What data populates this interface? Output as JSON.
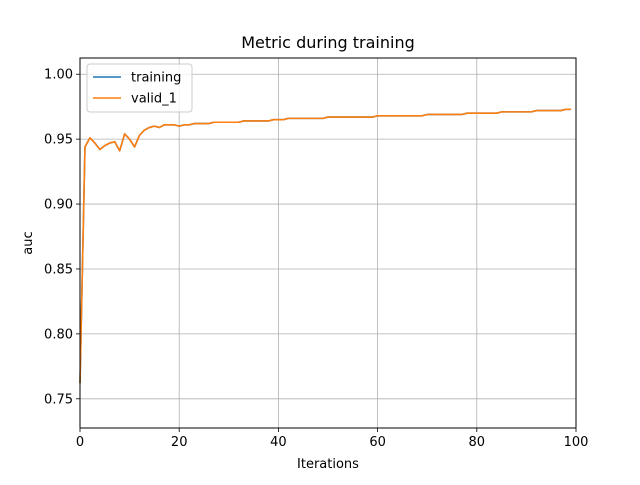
{
  "chart_data": {
    "type": "line",
    "title": "Metric during training",
    "xlabel": "Iterations",
    "ylabel": "auc",
    "xlim": [
      0,
      100
    ],
    "ylim": [
      0.7275,
      1.0125
    ],
    "grid": true,
    "legend_position": "top-left",
    "xticks": [
      "0",
      "20",
      "40",
      "60",
      "80",
      "100"
    ],
    "xtick_values": [
      0,
      20,
      40,
      60,
      80,
      100
    ],
    "yticks": [
      "0.75",
      "0.80",
      "0.85",
      "0.90",
      "0.95",
      "1.00"
    ],
    "ytick_values": [
      0.75,
      0.8,
      0.85,
      0.9,
      0.95,
      1.0
    ],
    "x": [
      0,
      1,
      2,
      3,
      4,
      5,
      6,
      7,
      8,
      9,
      10,
      11,
      12,
      13,
      14,
      15,
      16,
      17,
      18,
      19,
      20,
      21,
      22,
      23,
      24,
      25,
      26,
      27,
      28,
      29,
      30,
      31,
      32,
      33,
      34,
      35,
      36,
      37,
      38,
      39,
      40,
      41,
      42,
      43,
      44,
      45,
      46,
      47,
      48,
      49,
      50,
      51,
      52,
      53,
      54,
      55,
      56,
      57,
      58,
      59,
      60,
      61,
      62,
      63,
      64,
      65,
      66,
      67,
      68,
      69,
      70,
      71,
      72,
      73,
      74,
      75,
      76,
      77,
      78,
      79,
      80,
      81,
      82,
      83,
      84,
      85,
      86,
      87,
      88,
      89,
      90,
      91,
      92,
      93,
      94,
      95,
      96,
      97,
      98,
      99
    ],
    "series": [
      {
        "name": "training",
        "color": "#1f77b4",
        "values": [
          0.762,
          0.944,
          0.951,
          0.947,
          0.942,
          0.945,
          0.947,
          0.948,
          0.941,
          0.954,
          0.95,
          0.944,
          0.953,
          0.957,
          0.959,
          0.96,
          0.959,
          0.961,
          0.961,
          0.961,
          0.96,
          0.961,
          0.961,
          0.962,
          0.962,
          0.962,
          0.962,
          0.963,
          0.963,
          0.963,
          0.963,
          0.963,
          0.963,
          0.964,
          0.964,
          0.964,
          0.964,
          0.964,
          0.964,
          0.965,
          0.965,
          0.965,
          0.966,
          0.966,
          0.966,
          0.966,
          0.966,
          0.966,
          0.966,
          0.966,
          0.967,
          0.967,
          0.967,
          0.967,
          0.967,
          0.967,
          0.967,
          0.967,
          0.967,
          0.967,
          0.968,
          0.968,
          0.968,
          0.968,
          0.968,
          0.968,
          0.968,
          0.968,
          0.968,
          0.968,
          0.969,
          0.969,
          0.969,
          0.969,
          0.969,
          0.969,
          0.969,
          0.969,
          0.97,
          0.97,
          0.97,
          0.97,
          0.97,
          0.97,
          0.97,
          0.971,
          0.971,
          0.971,
          0.971,
          0.971,
          0.971,
          0.971,
          0.972,
          0.972,
          0.972,
          0.972,
          0.972,
          0.972,
          0.973,
          0.973
        ]
      },
      {
        "name": "valid_1",
        "color": "#ff7f0e",
        "values": [
          0.762,
          0.944,
          0.951,
          0.947,
          0.942,
          0.945,
          0.947,
          0.948,
          0.941,
          0.954,
          0.95,
          0.944,
          0.953,
          0.957,
          0.959,
          0.96,
          0.959,
          0.961,
          0.961,
          0.961,
          0.96,
          0.961,
          0.961,
          0.962,
          0.962,
          0.962,
          0.962,
          0.963,
          0.963,
          0.963,
          0.963,
          0.963,
          0.963,
          0.964,
          0.964,
          0.964,
          0.964,
          0.964,
          0.964,
          0.965,
          0.965,
          0.965,
          0.966,
          0.966,
          0.966,
          0.966,
          0.966,
          0.966,
          0.966,
          0.966,
          0.967,
          0.967,
          0.967,
          0.967,
          0.967,
          0.967,
          0.967,
          0.967,
          0.967,
          0.967,
          0.968,
          0.968,
          0.968,
          0.968,
          0.968,
          0.968,
          0.968,
          0.968,
          0.968,
          0.968,
          0.969,
          0.969,
          0.969,
          0.969,
          0.969,
          0.969,
          0.969,
          0.969,
          0.97,
          0.97,
          0.97,
          0.97,
          0.97,
          0.97,
          0.97,
          0.971,
          0.971,
          0.971,
          0.971,
          0.971,
          0.971,
          0.971,
          0.972,
          0.972,
          0.972,
          0.972,
          0.972,
          0.972,
          0.973,
          0.973
        ]
      }
    ]
  }
}
